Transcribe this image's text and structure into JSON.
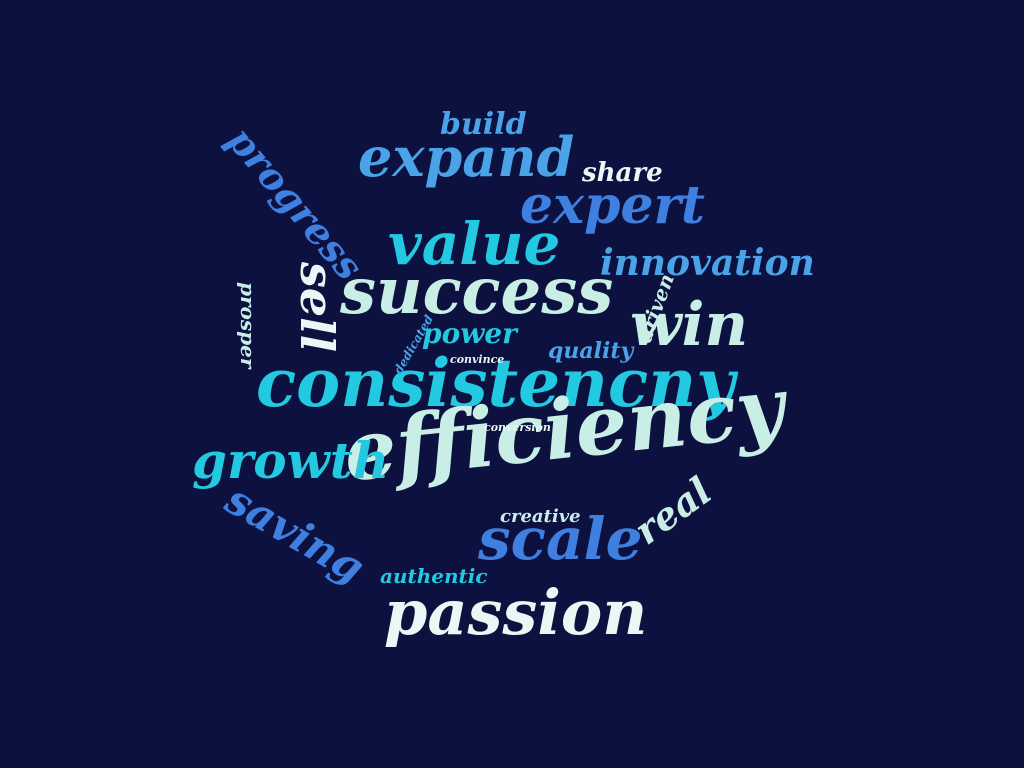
{
  "colors": {
    "background": "#0c1140",
    "white": "#e9f7f5",
    "mint": "#c9eee6",
    "cyan": "#22c9e0",
    "sky": "#4aa3e6",
    "blue": "#3f7fe0",
    "steel": "#5b8ae0"
  },
  "words": {
    "consistencny": "consistencny",
    "efficiency": "efficiency",
    "success": "success",
    "value": "value",
    "expand": "expand",
    "expert": "expert",
    "passion": "passion",
    "scale": "scale",
    "growth": "growth",
    "win": "win",
    "innovation": "innovation",
    "saving": "saving",
    "progress": "progress",
    "sell": "sell",
    "real": "real",
    "build": "build",
    "share": "share",
    "power": "power",
    "quality": "quality",
    "driven": "driven",
    "prosper": "prosper",
    "authentic": "authentic",
    "creative": "creative",
    "dedicated": "dedicated",
    "convince": "convince",
    "conversion": "conversion"
  }
}
